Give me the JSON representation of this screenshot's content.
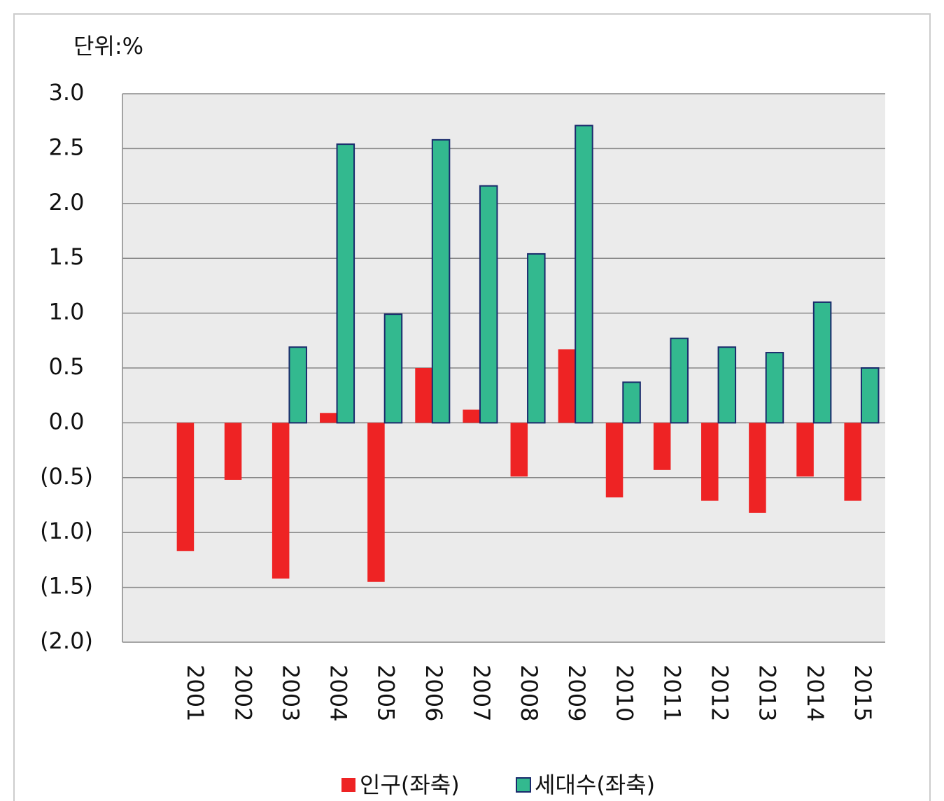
{
  "chart_data": {
    "type": "bar",
    "unit_label": "단위:%",
    "categories": [
      null,
      "2001",
      "2002",
      "2003",
      "2004",
      "2005",
      "2006",
      "2007",
      "2008",
      "2009",
      "2010",
      "2011",
      "2012",
      "2013",
      "2014",
      "2015"
    ],
    "series": [
      {
        "name": "인구(좌축)",
        "color": "#ee2324",
        "values": [
          null,
          -1.17,
          -0.52,
          -1.42,
          0.09,
          -1.45,
          0.5,
          0.12,
          -0.49,
          0.67,
          -0.68,
          -0.43,
          -0.71,
          -0.82,
          -0.49,
          -0.71
        ]
      },
      {
        "name": "세대수(좌축)",
        "color": "#33b98f",
        "values": [
          null,
          null,
          null,
          0.69,
          2.54,
          0.99,
          2.58,
          2.16,
          1.54,
          2.71,
          0.37,
          0.77,
          0.69,
          0.64,
          1.1,
          0.5
        ]
      }
    ],
    "ylim": [
      -2.0,
      3.0
    ],
    "yticks": [
      {
        "value": 3.0,
        "label": "3.0"
      },
      {
        "value": 2.5,
        "label": "2.5"
      },
      {
        "value": 2.0,
        "label": "2.0"
      },
      {
        "value": 1.5,
        "label": "1.5"
      },
      {
        "value": 1.0,
        "label": "1.0"
      },
      {
        "value": 0.5,
        "label": "0.5"
      },
      {
        "value": 0.0,
        "label": "0.0"
      },
      {
        "value": -0.5,
        "label": "(0.5)"
      },
      {
        "value": -1.0,
        "label": "(1.0)"
      },
      {
        "value": -1.5,
        "label": "(1.5)"
      },
      {
        "value": -2.0,
        "label": "(2.0)"
      }
    ],
    "grid": true
  }
}
